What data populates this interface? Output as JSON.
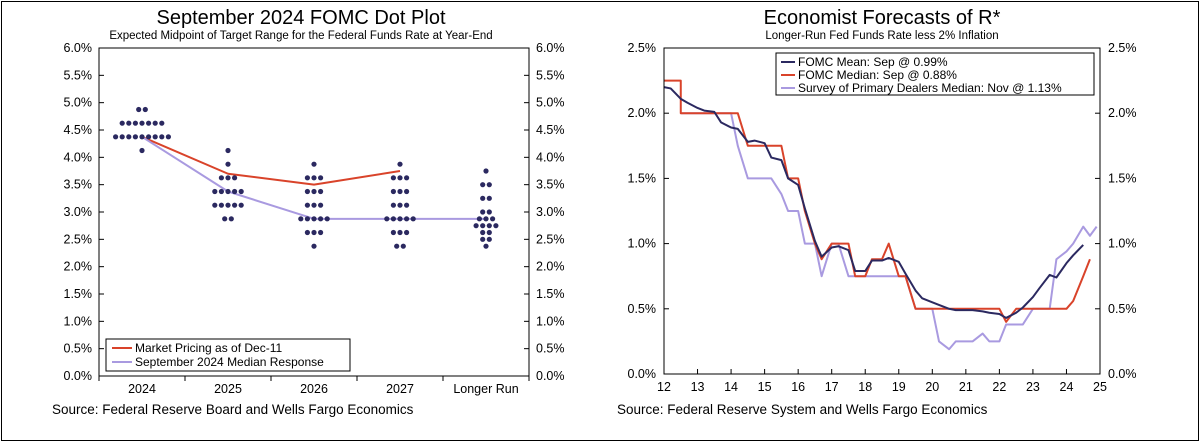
{
  "chart_data": [
    {
      "type": "scatter",
      "title": "September 2024 FOMC Dot Plot",
      "subtitle": "Expected Midpoint of Target Range for the Federal Funds Rate at Year-End",
      "source": "Source: Federal Reserve Board and Wells Fargo Economics",
      "categories": [
        "2024",
        "2025",
        "2026",
        "2027",
        "Longer Run"
      ],
      "y_ticks": [
        "0.0%",
        "0.5%",
        "1.0%",
        "1.5%",
        "2.0%",
        "2.5%",
        "3.0%",
        "3.5%",
        "4.0%",
        "4.5%",
        "5.0%",
        "5.5%",
        "6.0%"
      ],
      "ylim": [
        0,
        6
      ],
      "grid": false,
      "legend_position": "bottom-left",
      "dots": [
        {
          "category": "2024",
          "values": [
            {
              "y": 4.875,
              "count": 2
            },
            {
              "y": 4.625,
              "count": 7
            },
            {
              "y": 4.375,
              "count": 9
            },
            {
              "y": 4.125,
              "count": 1
            }
          ]
        },
        {
          "category": "2025",
          "values": [
            {
              "y": 4.125,
              "count": 1
            },
            {
              "y": 3.875,
              "count": 1
            },
            {
              "y": 3.625,
              "count": 3
            },
            {
              "y": 3.375,
              "count": 5
            },
            {
              "y": 3.125,
              "count": 5
            },
            {
              "y": 2.875,
              "count": 2
            }
          ]
        },
        {
          "category": "2026",
          "values": [
            {
              "y": 3.875,
              "count": 1
            },
            {
              "y": 3.625,
              "count": 3
            },
            {
              "y": 3.375,
              "count": 3
            },
            {
              "y": 3.125,
              "count": 3
            },
            {
              "y": 2.875,
              "count": 5
            },
            {
              "y": 2.625,
              "count": 3
            },
            {
              "y": 2.375,
              "count": 1
            }
          ]
        },
        {
          "category": "2027",
          "values": [
            {
              "y": 3.875,
              "count": 1
            },
            {
              "y": 3.625,
              "count": 3
            },
            {
              "y": 3.375,
              "count": 3
            },
            {
              "y": 3.125,
              "count": 3
            },
            {
              "y": 2.875,
              "count": 5
            },
            {
              "y": 2.625,
              "count": 3
            },
            {
              "y": 2.375,
              "count": 2
            }
          ]
        },
        {
          "category": "Longer Run",
          "values": [
            {
              "y": 3.75,
              "count": 1
            },
            {
              "y": 3.5,
              "count": 2
            },
            {
              "y": 3.25,
              "count": 2
            },
            {
              "y": 3.0,
              "count": 2
            },
            {
              "y": 2.875,
              "count": 3
            },
            {
              "y": 2.75,
              "count": 4
            },
            {
              "y": 2.625,
              "count": 2
            },
            {
              "y": 2.5,
              "count": 2
            },
            {
              "y": 2.375,
              "count": 1
            }
          ]
        }
      ],
      "series": [
        {
          "name": "Market Pricing as of Dec-11",
          "color": "#d9432a",
          "values": [
            4.375,
            3.7,
            3.5,
            3.75
          ]
        },
        {
          "name": "September 2024 Median Response",
          "color": "#a99ae0",
          "values": [
            4.375,
            3.375,
            2.875,
            2.875,
            2.875
          ]
        }
      ],
      "dot_color": "#2b2960"
    },
    {
      "type": "line",
      "title": "Economist Forecasts of R*",
      "subtitle": "Longer-Run Fed Funds Rate less 2% Inflation",
      "source": "Source: Federal Reserve System and Wells Fargo Economics",
      "xlim": [
        12,
        25
      ],
      "x_ticks": [
        "12",
        "13",
        "14",
        "15",
        "16",
        "17",
        "18",
        "19",
        "20",
        "21",
        "22",
        "23",
        "24",
        "25"
      ],
      "ylim": [
        0,
        2.5
      ],
      "y_ticks": [
        "0.0%",
        "0.5%",
        "1.0%",
        "1.5%",
        "2.0%",
        "2.5%"
      ],
      "grid": false,
      "legend_position": "top",
      "series": [
        {
          "name": "FOMC Mean: Sep @ 0.99%",
          "color": "#2b2960",
          "points": [
            [
              12.0,
              2.2
            ],
            [
              12.2,
              2.19
            ],
            [
              12.5,
              2.11
            ],
            [
              12.7,
              2.08
            ],
            [
              13.0,
              2.04
            ],
            [
              13.2,
              2.02
            ],
            [
              13.5,
              2.01
            ],
            [
              13.7,
              1.93
            ],
            [
              14.0,
              1.89
            ],
            [
              14.2,
              1.88
            ],
            [
              14.5,
              1.78
            ],
            [
              14.7,
              1.79
            ],
            [
              15.0,
              1.77
            ],
            [
              15.2,
              1.66
            ],
            [
              15.5,
              1.64
            ],
            [
              15.7,
              1.5
            ],
            [
              16.0,
              1.45
            ],
            [
              16.2,
              1.27
            ],
            [
              16.5,
              1.02
            ],
            [
              16.7,
              0.9
            ],
            [
              17.0,
              0.97
            ],
            [
              17.2,
              0.98
            ],
            [
              17.5,
              0.95
            ],
            [
              17.7,
              0.79
            ],
            [
              18.0,
              0.79
            ],
            [
              18.2,
              0.87
            ],
            [
              18.5,
              0.87
            ],
            [
              18.7,
              0.89
            ],
            [
              19.0,
              0.86
            ],
            [
              19.2,
              0.77
            ],
            [
              19.5,
              0.64
            ],
            [
              19.7,
              0.58
            ],
            [
              20.0,
              0.55
            ],
            [
              20.2,
              0.53
            ],
            [
              20.5,
              0.5
            ],
            [
              20.7,
              0.49
            ],
            [
              21.0,
              0.49
            ],
            [
              21.2,
              0.49
            ],
            [
              21.5,
              0.48
            ],
            [
              21.7,
              0.47
            ],
            [
              22.0,
              0.46
            ],
            [
              22.2,
              0.43
            ],
            [
              22.5,
              0.47
            ],
            [
              22.7,
              0.51
            ],
            [
              23.0,
              0.59
            ],
            [
              23.2,
              0.66
            ],
            [
              23.5,
              0.76
            ],
            [
              23.7,
              0.74
            ],
            [
              24.0,
              0.85
            ],
            [
              24.2,
              0.91
            ],
            [
              24.5,
              0.99
            ]
          ]
        },
        {
          "name": "FOMC Median: Sep @ 0.88%",
          "color": "#d9432a",
          "points": [
            [
              12.0,
              2.25
            ],
            [
              12.2,
              2.25
            ],
            [
              12.5,
              2.25
            ],
            [
              12.5,
              2.0
            ],
            [
              12.7,
              2.0
            ],
            [
              13.0,
              2.0
            ],
            [
              13.2,
              2.0
            ],
            [
              13.5,
              2.0
            ],
            [
              13.7,
              2.0
            ],
            [
              14.0,
              2.0
            ],
            [
              14.2,
              2.0
            ],
            [
              14.5,
              1.75
            ],
            [
              14.7,
              1.75
            ],
            [
              15.0,
              1.75
            ],
            [
              15.2,
              1.75
            ],
            [
              15.5,
              1.75
            ],
            [
              15.7,
              1.5
            ],
            [
              16.0,
              1.5
            ],
            [
              16.2,
              1.25
            ],
            [
              16.5,
              1.0
            ],
            [
              16.7,
              0.88
            ],
            [
              17.0,
              1.0
            ],
            [
              17.2,
              1.0
            ],
            [
              17.5,
              1.0
            ],
            [
              17.7,
              0.75
            ],
            [
              18.0,
              0.75
            ],
            [
              18.2,
              0.88
            ],
            [
              18.5,
              0.88
            ],
            [
              18.7,
              1.0
            ],
            [
              19.0,
              0.75
            ],
            [
              19.2,
              0.75
            ],
            [
              19.5,
              0.5
            ],
            [
              19.7,
              0.5
            ],
            [
              20.0,
              0.5
            ],
            [
              20.2,
              0.5
            ],
            [
              20.5,
              0.5
            ],
            [
              20.7,
              0.5
            ],
            [
              21.0,
              0.5
            ],
            [
              21.2,
              0.5
            ],
            [
              21.5,
              0.5
            ],
            [
              21.7,
              0.5
            ],
            [
              22.0,
              0.5
            ],
            [
              22.2,
              0.4
            ],
            [
              22.5,
              0.5
            ],
            [
              22.7,
              0.5
            ],
            [
              23.0,
              0.5
            ],
            [
              23.2,
              0.5
            ],
            [
              23.5,
              0.5
            ],
            [
              23.7,
              0.5
            ],
            [
              24.0,
              0.5
            ],
            [
              24.2,
              0.56
            ],
            [
              24.5,
              0.75
            ],
            [
              24.7,
              0.88
            ]
          ]
        },
        {
          "name": "Survey of Primary Dealers Median: Nov @ 1.13%",
          "color": "#a99ae0",
          "points": [
            [
              12.5,
              2.0
            ],
            [
              12.7,
              2.0
            ],
            [
              13.0,
              2.0
            ],
            [
              13.2,
              2.0
            ],
            [
              13.5,
              2.0
            ],
            [
              13.7,
              2.0
            ],
            [
              14.0,
              2.0
            ],
            [
              14.2,
              1.75
            ],
            [
              14.5,
              1.5
            ],
            [
              14.7,
              1.5
            ],
            [
              15.0,
              1.5
            ],
            [
              15.2,
              1.5
            ],
            [
              15.5,
              1.38
            ],
            [
              15.7,
              1.25
            ],
            [
              16.0,
              1.25
            ],
            [
              16.2,
              1.0
            ],
            [
              16.5,
              1.0
            ],
            [
              16.7,
              0.75
            ],
            [
              17.0,
              1.0
            ],
            [
              17.2,
              1.0
            ],
            [
              17.5,
              0.75
            ],
            [
              17.7,
              0.75
            ],
            [
              18.0,
              0.75
            ],
            [
              18.2,
              0.75
            ],
            [
              18.5,
              0.75
            ],
            [
              18.7,
              0.75
            ],
            [
              19.0,
              0.75
            ],
            [
              19.2,
              0.75
            ],
            [
              19.5,
              0.5
            ],
            [
              19.7,
              0.5
            ],
            [
              20.0,
              0.5
            ],
            [
              20.2,
              0.25
            ],
            [
              20.5,
              0.19
            ],
            [
              20.7,
              0.25
            ],
            [
              21.0,
              0.25
            ],
            [
              21.2,
              0.25
            ],
            [
              21.5,
              0.31
            ],
            [
              21.7,
              0.25
            ],
            [
              22.0,
              0.25
            ],
            [
              22.2,
              0.38
            ],
            [
              22.5,
              0.38
            ],
            [
              22.7,
              0.38
            ],
            [
              23.0,
              0.5
            ],
            [
              23.2,
              0.5
            ],
            [
              23.5,
              0.5
            ],
            [
              23.7,
              0.88
            ],
            [
              24.0,
              0.94
            ],
            [
              24.2,
              1.0
            ],
            [
              24.5,
              1.13
            ],
            [
              24.7,
              1.06
            ],
            [
              24.9,
              1.13
            ]
          ]
        }
      ]
    }
  ]
}
